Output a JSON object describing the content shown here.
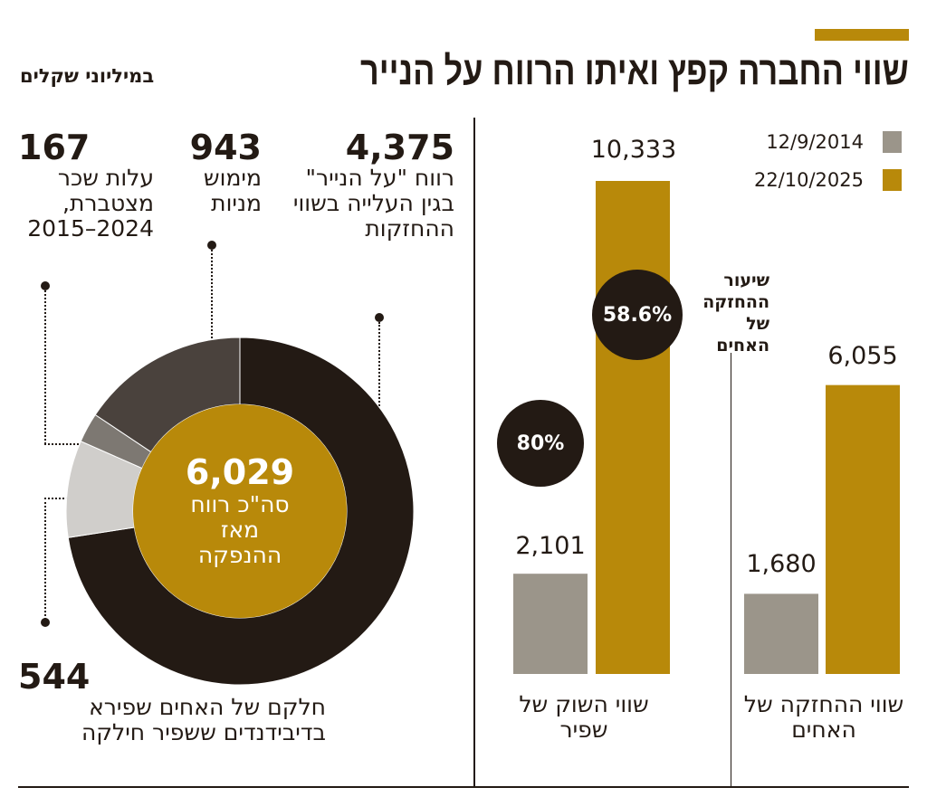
{
  "title": {
    "main": "שווי החברה קפץ ואיתו הרווח על  הנייר",
    "unit": "במיליוני שקלים"
  },
  "colors": {
    "accent": "#b8890a",
    "gray": "#9b958a",
    "dark": "#231a14",
    "dark_gray": "#4a423d",
    "mid_gray": "#7d7872",
    "light_gray": "#d0cecb"
  },
  "chart_data": [
    {
      "type": "pie",
      "subtype": "donut",
      "center_value": "6,029",
      "center_label": "סה\"כ רווח מאז ההנפקה",
      "slices": [
        {
          "value": 4375,
          "value_label": "4,375",
          "label": "רווח \"על הנייר\" בגין העלייה בשווי ההחזקות",
          "color": "#231a14"
        },
        {
          "value": 544,
          "value_label": "544",
          "label": "חלקם של האחים שפירא בדיבידנדים ששפיר חילקה",
          "color": "#d0cecb"
        },
        {
          "value": 167,
          "value_label": "167",
          "label": "עלות שכר מצטברת, 2024–2015",
          "color": "#7d7872"
        },
        {
          "value": 943,
          "value_label": "943",
          "label": "מימוש מניות",
          "color": "#4a423d"
        }
      ]
    },
    {
      "type": "bar",
      "legend": [
        {
          "name": "12/9/2014",
          "color": "#9b958a"
        },
        {
          "name": "22/10/2025",
          "color": "#b8890a"
        }
      ],
      "groups": [
        {
          "category": "שווי השוק של שפיר",
          "values": [
            2101,
            10333
          ],
          "labels": [
            "2,101",
            "10,333"
          ]
        },
        {
          "category": "שווי ההחזקה של האחים",
          "values": [
            1680,
            6055
          ],
          "labels": [
            "1,680",
            "6,055"
          ]
        }
      ],
      "annotations": {
        "holding_rate_label": "שיעור ההחזקה של האחים",
        "rate_2014": "80%",
        "rate_2025": "58.6%"
      }
    }
  ]
}
